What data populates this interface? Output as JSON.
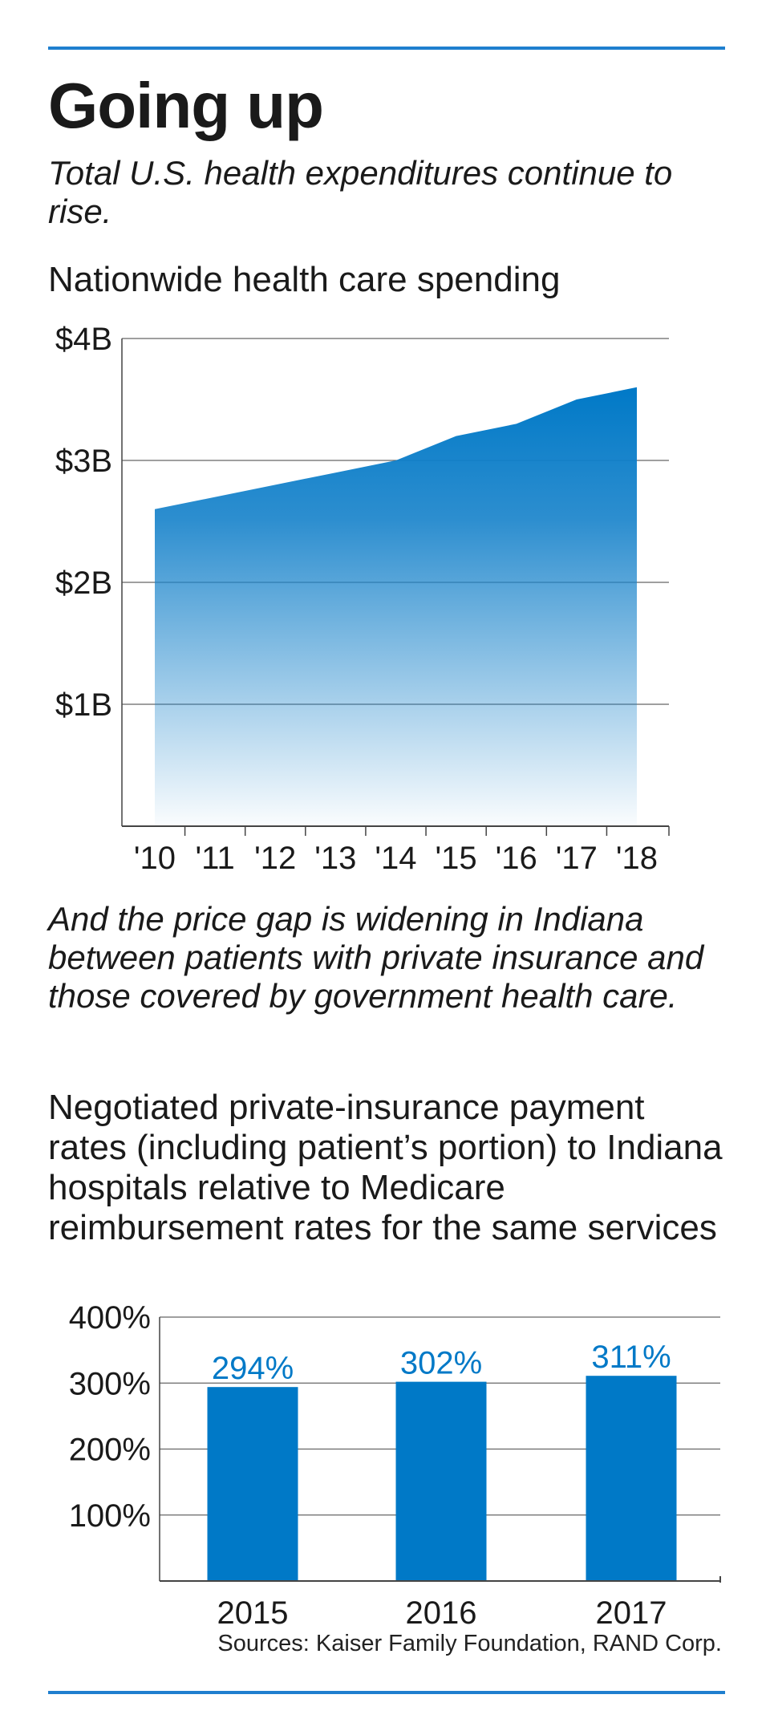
{
  "header": {
    "title": "Going up",
    "subtitle": "Total U.S. health expenditures continue to rise."
  },
  "middle_text": "And the price gap is widening in Indiana between patients with private insurance and those covered by government health care.",
  "colors": {
    "accent": "#0079c7",
    "rule": "#1f7fcf",
    "grid": "#666666"
  },
  "chart_data": [
    {
      "type": "area",
      "title": "Nationwide health care spending",
      "x": [
        "'10",
        "'11",
        "'12",
        "'13",
        "'14",
        "'15",
        "'16",
        "'17",
        "'18"
      ],
      "values": [
        2.6,
        2.7,
        2.8,
        2.9,
        3.0,
        3.2,
        3.3,
        3.5,
        3.6
      ],
      "yticks": [
        "$1B",
        "$2B",
        "$3B",
        "$4B"
      ],
      "ytick_values": [
        1,
        2,
        3,
        4
      ],
      "ylim": [
        0,
        4
      ],
      "grid": true
    },
    {
      "type": "bar",
      "title": "Negotiated private-insurance payment rates (including patient’s portion) to Indiana hospitals relative to Medicare reimbursement rates for the same services",
      "categories": [
        "2015",
        "2016",
        "2017"
      ],
      "values": [
        294,
        302,
        311
      ],
      "data_labels": [
        "294%",
        "302%",
        "311%"
      ],
      "yticks": [
        "100%",
        "200%",
        "300%",
        "400%"
      ],
      "ytick_values": [
        100,
        200,
        300,
        400
      ],
      "ylim": [
        0,
        400
      ],
      "grid": true
    }
  ],
  "source": "Sources: Kaiser Family Foundation, RAND Corp."
}
